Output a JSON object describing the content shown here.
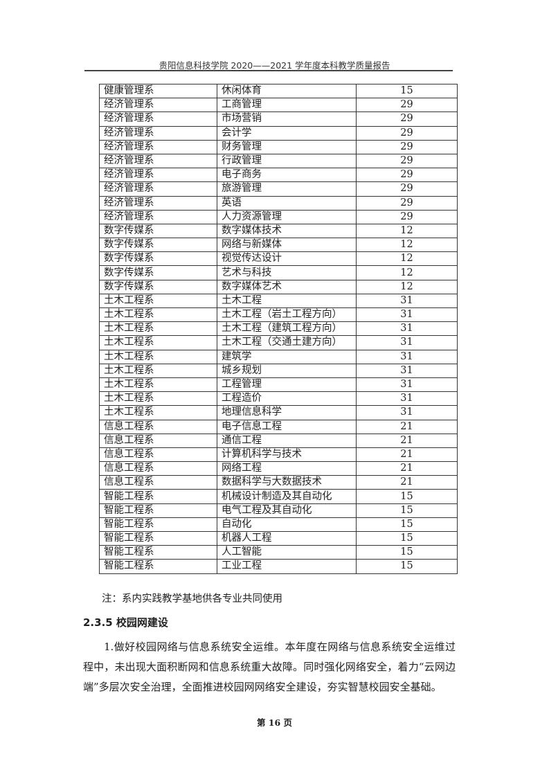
{
  "header": {
    "title": "贵阳信息科技学院 2020——2021 学年度本科教学质量报告"
  },
  "table": {
    "rows": [
      [
        "健康管理系",
        "休闲体育",
        "15"
      ],
      [
        "经济管理系",
        "工商管理",
        "29"
      ],
      [
        "经济管理系",
        "市场营销",
        "29"
      ],
      [
        "经济管理系",
        "会计学",
        "29"
      ],
      [
        "经济管理系",
        "财务管理",
        "29"
      ],
      [
        "经济管理系",
        "行政管理",
        "29"
      ],
      [
        "经济管理系",
        "电子商务",
        "29"
      ],
      [
        "经济管理系",
        "旅游管理",
        "29"
      ],
      [
        "经济管理系",
        "英语",
        "29"
      ],
      [
        "经济管理系",
        "人力资源管理",
        "29"
      ],
      [
        "数字传媒系",
        "数字媒体技术",
        "12"
      ],
      [
        "数字传媒系",
        "网络与新媒体",
        "12"
      ],
      [
        "数字传媒系",
        "视觉传达设计",
        "12"
      ],
      [
        "数字传媒系",
        "艺术与科技",
        "12"
      ],
      [
        "数字传媒系",
        "数字媒体艺术",
        "12"
      ],
      [
        "土木工程系",
        "土木工程",
        "31"
      ],
      [
        "土木工程系",
        "土木工程（岩土工程方向）",
        "31"
      ],
      [
        "土木工程系",
        "土木工程（建筑工程方向）",
        "31"
      ],
      [
        "土木工程系",
        "土木工程（交通土建方向）",
        "31"
      ],
      [
        "土木工程系",
        "建筑学",
        "31"
      ],
      [
        "土木工程系",
        "城乡规划",
        "31"
      ],
      [
        "土木工程系",
        "工程管理",
        "31"
      ],
      [
        "土木工程系",
        "工程造价",
        "31"
      ],
      [
        "土木工程系",
        "地理信息科学",
        "31"
      ],
      [
        "信息工程系",
        "电子信息工程",
        "21"
      ],
      [
        "信息工程系",
        "通信工程",
        "21"
      ],
      [
        "信息工程系",
        "计算机科学与技术",
        "21"
      ],
      [
        "信息工程系",
        "网络工程",
        "21"
      ],
      [
        "信息工程系",
        "数据科学与大数据技术",
        "21"
      ],
      [
        "智能工程系",
        "机械设计制造及其自动化",
        "15"
      ],
      [
        "智能工程系",
        "电气工程及其自动化",
        "15"
      ],
      [
        "智能工程系",
        "自动化",
        "15"
      ],
      [
        "智能工程系",
        "机器人工程",
        "15"
      ],
      [
        "智能工程系",
        "人工智能",
        "15"
      ],
      [
        "智能工程系",
        "工业工程",
        "15"
      ]
    ]
  },
  "note": "注：系内实践教学基地供各专业共同使用",
  "section": {
    "title": "2.3.5 校园网建设"
  },
  "paragraph": "1.做好校园网络与信息系统安全运维。本年度在网络与信息系统安全运维过程中，未出现大面积断网和信息系统重大故障。同时强化网络安全，着力“云网边端”多层次安全治理，全面推进校园网网络安全建设，夯实智慧校园安全基础。",
  "footer": {
    "page": "第 16 页"
  }
}
